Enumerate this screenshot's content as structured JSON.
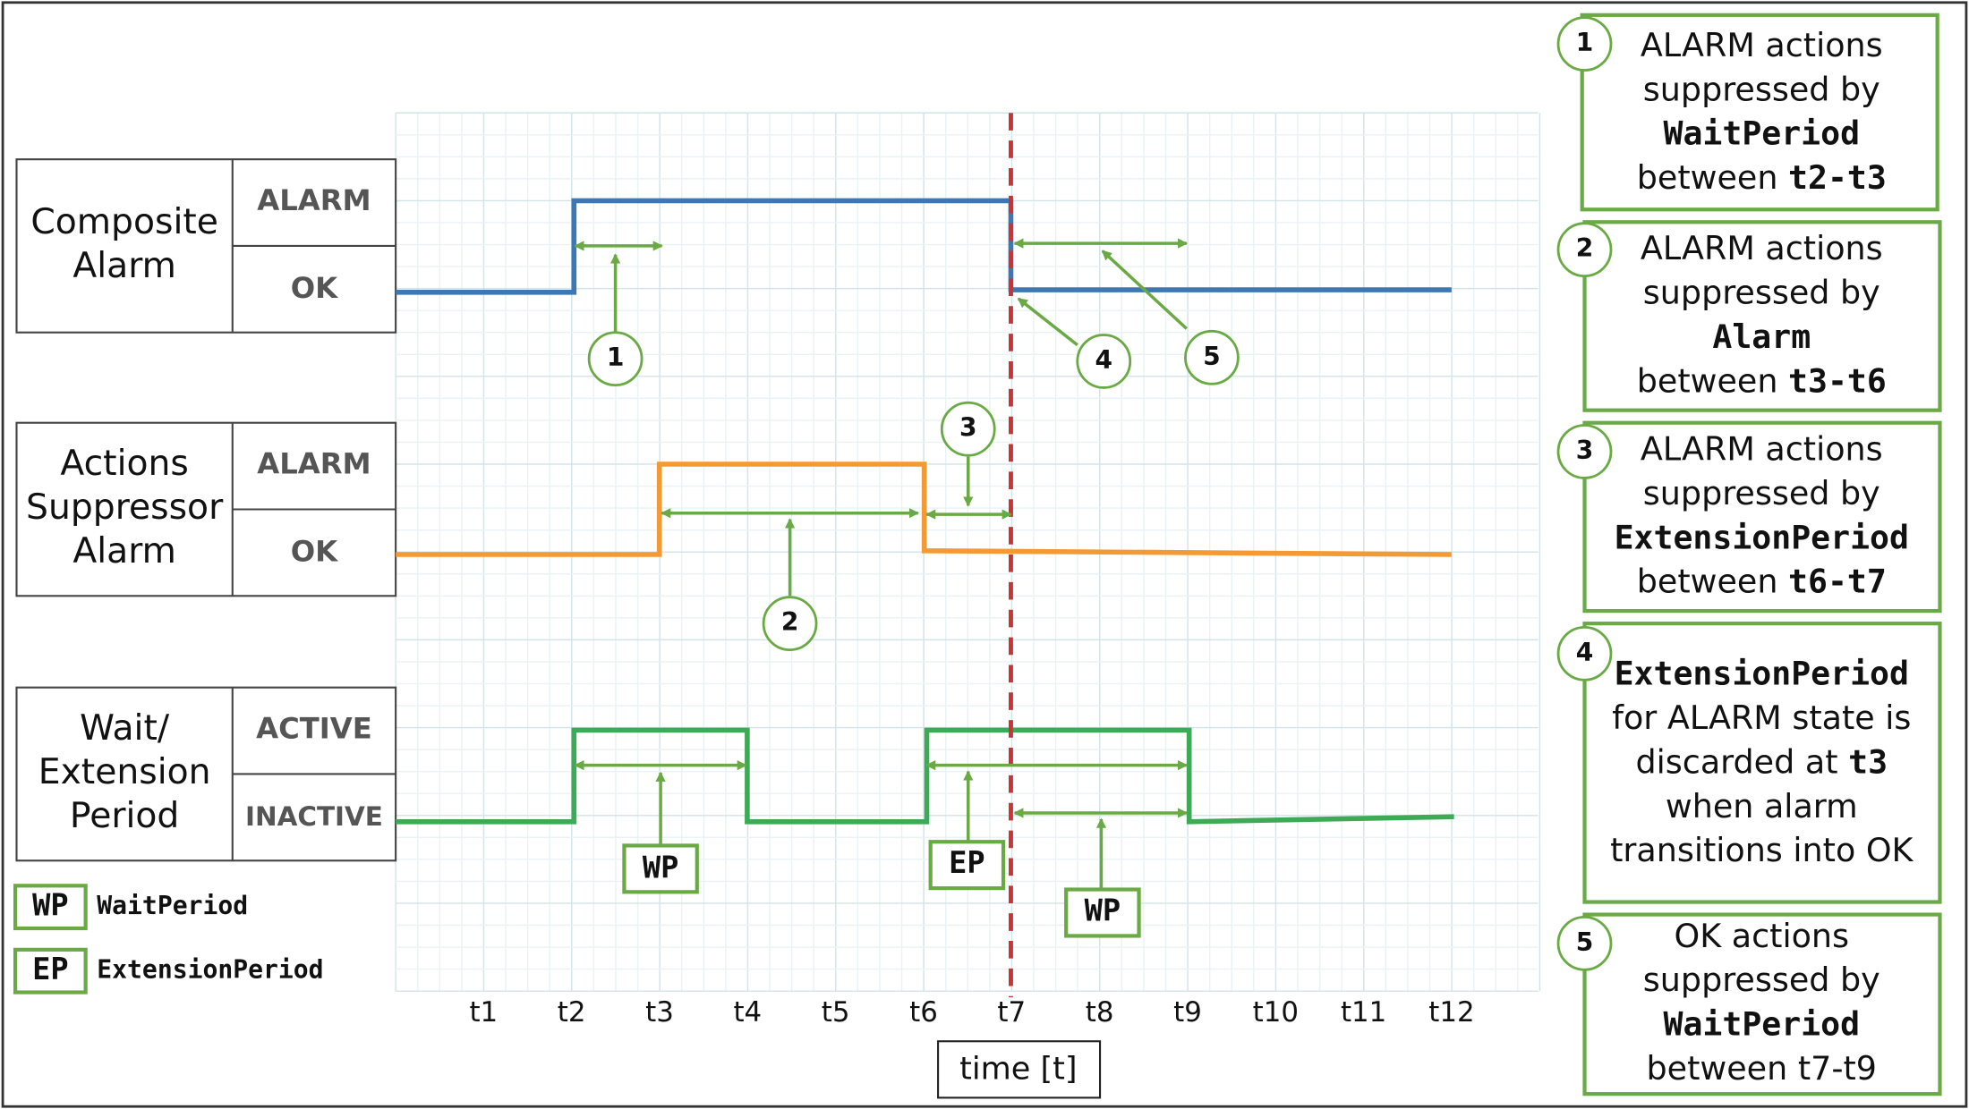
{
  "lanes": [
    {
      "label": [
        "Composite",
        "Alarm"
      ],
      "states": [
        "ALARM",
        "OK"
      ]
    },
    {
      "label": [
        "Actions",
        "Suppressor",
        "Alarm"
      ],
      "states": [
        "ALARM",
        "OK"
      ]
    },
    {
      "label": [
        "Wait/",
        "Extension",
        "Period"
      ],
      "states": [
        "ACTIVE",
        "INACTIVE"
      ]
    }
  ],
  "time_ticks": [
    "t1",
    "t2",
    "t3",
    "t4",
    "t5",
    "t6",
    "t7",
    "t8",
    "t9",
    "t10",
    "t11",
    "t12"
  ],
  "time_axis_label": "time [t]",
  "callouts": [
    "1",
    "2",
    "3",
    "4",
    "5"
  ],
  "markers": [
    "WP",
    "EP",
    "WP"
  ],
  "legend": [
    {
      "abbr": "WP",
      "name": "WaitPeriod"
    },
    {
      "abbr": "EP",
      "name": "ExtensionPeriod"
    }
  ],
  "notes": [
    {
      "number": "1",
      "lines": [
        [
          {
            "text": "ALARM actions"
          }
        ],
        [
          {
            "text": "suppressed by"
          }
        ],
        [
          {
            "text": "WaitPeriod",
            "code": true
          }
        ],
        [
          {
            "text": "between "
          },
          {
            "text": "t2-t3",
            "code": true
          }
        ]
      ]
    },
    {
      "number": "2",
      "lines": [
        [
          {
            "text": "ALARM actions"
          }
        ],
        [
          {
            "text": "suppressed by"
          }
        ],
        [
          {
            "text": "Alarm",
            "code": true
          }
        ],
        [
          {
            "text": "between "
          },
          {
            "text": "t3-t6",
            "code": true
          }
        ]
      ]
    },
    {
      "number": "3",
      "lines": [
        [
          {
            "text": "ALARM actions"
          }
        ],
        [
          {
            "text": "suppressed by"
          }
        ],
        [
          {
            "text": "ExtensionPeriod",
            "code": true
          }
        ],
        [
          {
            "text": "between "
          },
          {
            "text": "t6-t7",
            "code": true
          }
        ]
      ]
    },
    {
      "number": "4",
      "lines": [
        [
          {
            "text": "ExtensionPeriod",
            "code": true
          }
        ],
        [
          {
            "text": "for ALARM state is"
          }
        ],
        [
          {
            "text": "discarded at "
          },
          {
            "text": "t3",
            "code": true
          }
        ],
        [
          {
            "text": "when alarm"
          }
        ],
        [
          {
            "text": "transitions into OK"
          }
        ]
      ]
    },
    {
      "number": "5",
      "lines": [
        [
          {
            "text": "OK actions"
          }
        ],
        [
          {
            "text": "suppressed by"
          }
        ],
        [
          {
            "text": "WaitPeriod",
            "code": true
          }
        ],
        [
          {
            "text": "between t7-t9"
          }
        ]
      ]
    }
  ]
}
